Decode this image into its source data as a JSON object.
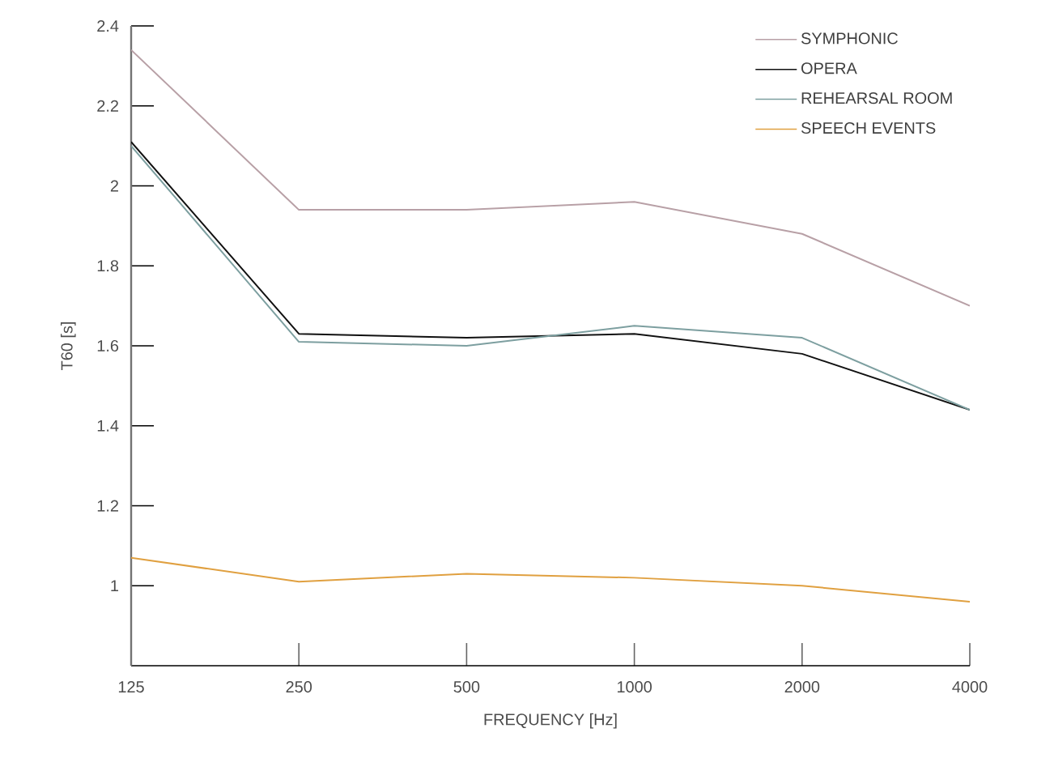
{
  "chart_data": {
    "type": "line",
    "xlabel": "FREQUENCY [Hz]",
    "ylabel": "T60 [s]",
    "categories": [
      "125",
      "250",
      "500",
      "1000",
      "2000",
      "4000"
    ],
    "series": [
      {
        "name": "SYMPHONIC",
        "color": "#b8a0a6",
        "values": [
          2.34,
          1.94,
          1.94,
          1.96,
          1.88,
          1.7
        ]
      },
      {
        "name": "OPERA",
        "color": "#111111",
        "values": [
          2.11,
          1.63,
          1.62,
          1.63,
          1.58,
          1.44
        ]
      },
      {
        "name": "REHEARSAL ROOM",
        "color": "#7d9fa0",
        "values": [
          2.1,
          1.61,
          1.6,
          1.65,
          1.62,
          1.44
        ]
      },
      {
        "name": "SPEECH EVENTS",
        "color": "#e0a040",
        "values": [
          1.07,
          1.01,
          1.03,
          1.02,
          1.0,
          0.96
        ]
      }
    ],
    "ylim": [
      0.8,
      2.4
    ],
    "yticks": [
      1,
      1.2,
      1.4,
      1.6,
      1.8,
      2,
      2.2,
      2.4
    ],
    "legend": "top right",
    "marker": "none"
  }
}
